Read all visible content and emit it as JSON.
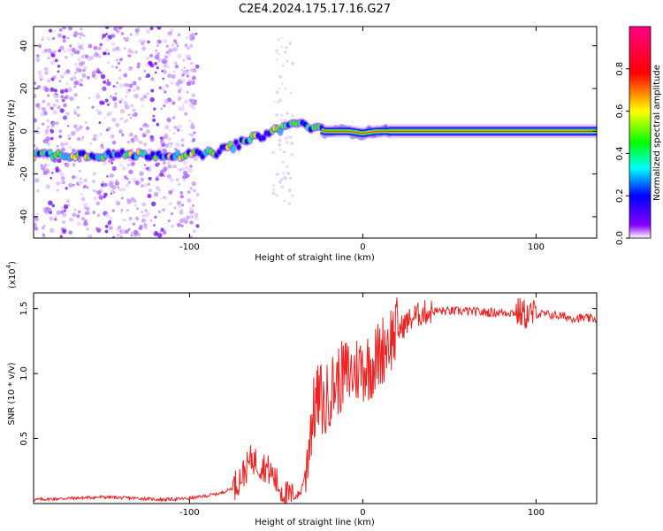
{
  "title": "C2E4.2024.175.17.16.G27",
  "chart_data": [
    {
      "type": "heatmap",
      "xlabel": "Height of straight line (km)",
      "ylabel": "Frequency (Hz)",
      "xlim": [
        -190,
        135
      ],
      "ylim": [
        -50,
        49
      ],
      "x_ticks": [
        -100,
        0,
        100
      ],
      "x_tick_labels": [
        "-100",
        "0",
        "100"
      ],
      "y_ticks": [
        -40,
        -20,
        0,
        20,
        40
      ],
      "y_tick_labels": [
        "-40",
        "-20",
        "0",
        "20",
        "40"
      ],
      "colorbar": {
        "label": "Normalized spectral amplitude",
        "range": [
          0,
          1
        ],
        "ticks": [
          0.0,
          0.2,
          0.4,
          0.6,
          0.8
        ],
        "tick_labels": [
          "0.0",
          "0.2",
          "0.4",
          "0.6",
          "0.8"
        ],
        "colors": [
          "#ffffff",
          "#8800ff",
          "#0000ff",
          "#00ffff",
          "#00ff00",
          "#ffff00",
          "#ff0000",
          "#ff0088"
        ]
      },
      "ridge": {
        "x": [
          -190,
          -170,
          -150,
          -130,
          -110,
          -95,
          -85,
          -75,
          -65,
          -55,
          -45,
          -38,
          -30,
          -22,
          -15,
          -8,
          0,
          8,
          15,
          40,
          80,
          100,
          135
        ],
        "y": [
          -11,
          -11,
          -11,
          -11,
          -11,
          -11,
          -10,
          -7,
          -4,
          -1,
          2,
          4,
          2,
          0,
          0,
          0,
          -1,
          0,
          0,
          0,
          0,
          0,
          0
        ]
      },
      "noise_region_x": [
        -190,
        -95
      ],
      "grid": false
    },
    {
      "type": "line",
      "xlabel": "Height of straight line (km)",
      "ylabel": "SNR (10 * v/v)",
      "y_scale_label": "(x10",
      "y_scale_exponent": "4",
      "y_scale_suffix": ")",
      "xlim": [
        -190,
        135
      ],
      "ylim": [
        0,
        1.62
      ],
      "x_ticks": [
        -100,
        0,
        100
      ],
      "x_tick_labels": [
        "-100",
        "0",
        "100"
      ],
      "y_ticks": [
        0.5,
        1.0,
        1.5
      ],
      "y_tick_labels": [
        "0.5",
        "1.0",
        "1.5"
      ],
      "color": "#ee2222",
      "grid": false,
      "series": [
        {
          "x": [
            -190,
            -170,
            -150,
            -130,
            -115,
            -100,
            -90,
            -82,
            -75,
            -68,
            -64,
            -60,
            -56,
            -52,
            -48,
            -44,
            -40,
            -36,
            -33,
            -30,
            -27,
            -24,
            -22,
            -20,
            -17,
            -14,
            -10,
            -6,
            -2,
            2,
            6,
            10,
            14,
            18,
            22,
            26,
            30,
            36,
            42,
            50,
            60,
            70,
            80,
            90,
            95,
            100,
            110,
            120,
            135
          ],
          "y": [
            0.03,
            0.04,
            0.05,
            0.04,
            0.03,
            0.04,
            0.06,
            0.08,
            0.12,
            0.25,
            0.35,
            0.3,
            0.28,
            0.22,
            0.12,
            0.06,
            0.05,
            0.08,
            0.25,
            0.6,
            0.78,
            0.82,
            0.7,
            0.85,
            0.9,
            0.95,
            1.0,
            1.0,
            1.05,
            1.05,
            1.08,
            1.15,
            1.25,
            1.3,
            1.35,
            1.4,
            1.44,
            1.47,
            1.48,
            1.48,
            1.48,
            1.47,
            1.47,
            1.47,
            1.45,
            1.46,
            1.45,
            1.43,
            1.42
          ]
        }
      ]
    }
  ]
}
